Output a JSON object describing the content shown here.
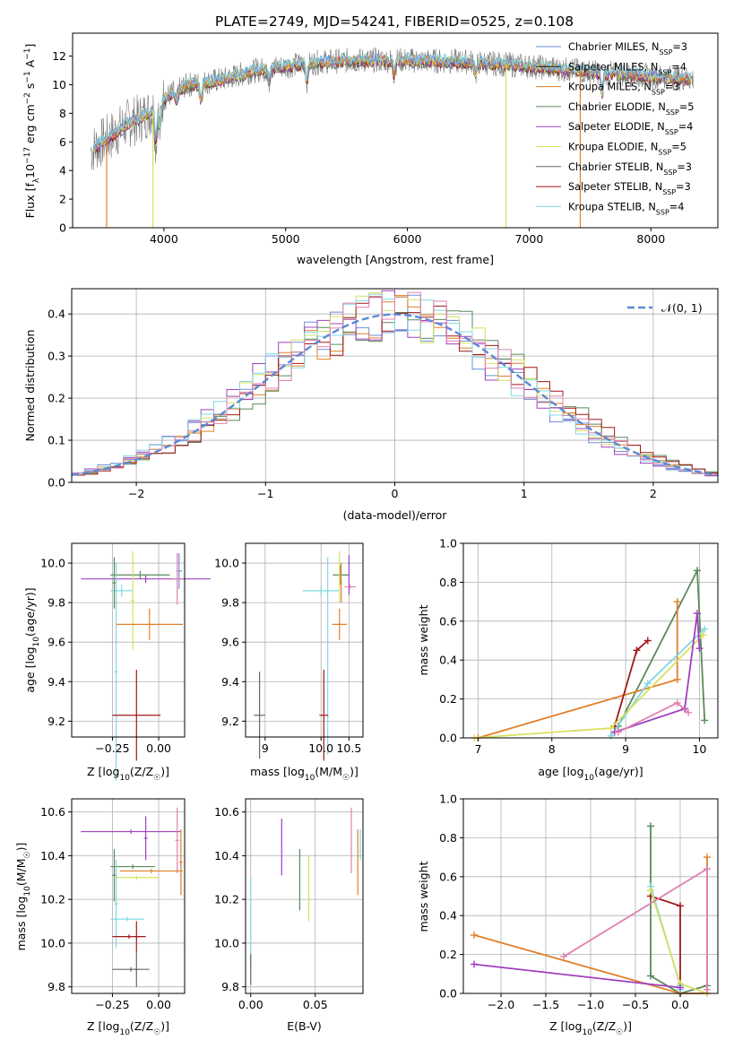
{
  "figure_title": "PLATE=2749, MJD=54241, FIBERID=0525, z=0.108",
  "colors": {
    "Chabrier MILES": "#6f8fd8",
    "Salpeter MILES": "#1f1f1f",
    "Kroupa MILES": "#e0802a",
    "Chabrier ELODIE": "#5a8a5a",
    "Salpeter ELODIE": "#a040c0",
    "Kroupa ELODIE": "#d8e060",
    "Chabrier STELIB": "#666666",
    "Salpeter STELIB": "#a01818",
    "Kroupa STELIB": "#80d8e0",
    "gaussian": "#5b8ad6",
    "extra_pink": "#e080b0"
  },
  "chart_data": [
    {
      "id": "spectrum",
      "type": "line",
      "title": "PLATE=2749, MJD=54241, FIBERID=0525, z=0.108",
      "xlabel": "wavelength [Angstrom, rest frame]",
      "ylabel": "Flux [f_λ 10^-17 erg cm^-2 s^-1 A^-1]",
      "xlim": [
        3250,
        8550
      ],
      "ylim": [
        0,
        13.6
      ],
      "xticks": [
        4000,
        5000,
        6000,
        7000,
        8000
      ],
      "yticks": [
        0,
        2,
        4,
        6,
        8,
        10,
        12
      ],
      "legend": [
        {
          "label": "Chabrier MILES, N_SSP=3",
          "main": "Chabrier MILES, N",
          "sub": "SSP",
          "tail": "=3"
        },
        {
          "label": "Salpeter MILES, N_SSP=4",
          "main": "Salpeter MILES, N",
          "sub": "SSP",
          "tail": "=4"
        },
        {
          "label": "Kroupa MILES, N_SSP=3",
          "main": "Kroupa MILES, N",
          "sub": "SSP",
          "tail": "=3"
        },
        {
          "label": "Chabrier ELODIE, N_SSP=5",
          "main": "Chabrier ELODIE, N",
          "sub": "SSP",
          "tail": "=5"
        },
        {
          "label": "Salpeter ELODIE, N_SSP=4",
          "main": "Salpeter ELODIE, N",
          "sub": "SSP",
          "tail": "=4"
        },
        {
          "label": "Kroupa ELODIE, N_SSP=5",
          "main": "Kroupa ELODIE, N",
          "sub": "SSP",
          "tail": "=5"
        },
        {
          "label": "Chabrier STELIB, N_SSP=3",
          "main": "Chabrier STELIB, N",
          "sub": "SSP",
          "tail": "=3"
        },
        {
          "label": "Salpeter STELIB, N_SSP=3",
          "main": "Salpeter STELIB, N",
          "sub": "SSP",
          "tail": "=3"
        },
        {
          "label": "Kroupa STELIB, N_SSP=4",
          "main": "Kroupa STELIB, N",
          "sub": "SSP",
          "tail": "=4"
        }
      ],
      "legend_placement": "right",
      "grid": false,
      "continuum": {
        "x": [
          3400,
          3500,
          3600,
          3700,
          3800,
          3900,
          4000,
          4100,
          4200,
          4300,
          4500,
          4700,
          4900,
          5100,
          5300,
          5600,
          6000,
          6500,
          7000,
          7500,
          8000,
          8350
        ],
        "y": [
          5.4,
          6.0,
          6.6,
          7.3,
          7.6,
          8.2,
          9.0,
          9.6,
          10.0,
          10.1,
          10.4,
          10.9,
          11.2,
          11.4,
          11.6,
          11.7,
          11.7,
          11.6,
          11.3,
          10.9,
          10.6,
          10.4
        ]
      },
      "absorption_features": [
        {
          "x": 3934,
          "depth": 2.5
        },
        {
          "x": 3968,
          "depth": 2.0
        },
        {
          "x": 4102,
          "depth": 1.0
        },
        {
          "x": 4304,
          "depth": 1.2
        },
        {
          "x": 4861,
          "depth": 1.0
        },
        {
          "x": 5175,
          "depth": 1.2
        },
        {
          "x": 5892,
          "depth": 1.0
        },
        {
          "x": 6563,
          "depth": 0.8
        },
        {
          "x": 7600,
          "depth": 1.5
        }
      ],
      "model_dropouts": [
        {
          "x": 3530,
          "series": "Kroupa MILES"
        },
        {
          "x": 3910,
          "series": "Kroupa ELODIE"
        },
        {
          "x": 6810,
          "series": "Kroupa ELODIE"
        },
        {
          "x": 7420,
          "series": "Kroupa MILES"
        }
      ]
    },
    {
      "id": "residuals",
      "type": "histogram",
      "xlabel": "(data-model)/error",
      "ylabel": "Normed distribution",
      "xlim": [
        -2.5,
        2.5
      ],
      "ylim": [
        0,
        0.46
      ],
      "xticks": [
        -2,
        -1,
        0,
        1,
        2
      ],
      "xtick_labels": [
        "−2",
        "−1",
        "0",
        "1",
        "2"
      ],
      "yticks": [
        0.0,
        0.1,
        0.2,
        0.3,
        0.4
      ],
      "grid": true,
      "bin_width": 0.1,
      "legend": {
        "label": "N(0,1)",
        "main": "𝒩(0, 1)",
        "placement": "upper right"
      },
      "gaussian": {
        "mean": 0,
        "sigma": 1,
        "peak": 0.399
      }
    },
    {
      "id": "age_vs_Z",
      "type": "scatter_errorbar",
      "xlabel": "Z [log10(Z/Z☉)]",
      "xlabel_main": "Z [log",
      "xlabel_sub": "10",
      "xlabel_tail": "(Z/Z",
      "ylabel": "age [log10(age/yr)]",
      "xlim": [
        -0.47,
        0.14
      ],
      "ylim": [
        9.12,
        10.1
      ],
      "xticks": [
        -0.25,
        0.0
      ],
      "xtick_labels": [
        "−0.25",
        "0.00"
      ],
      "yticks": [
        9.2,
        9.4,
        9.6,
        9.8,
        10.0
      ],
      "grid": true,
      "points": [
        {
          "series": "Chabrier MILES",
          "x": 0.11,
          "xerr": 0.015,
          "y": 9.96,
          "yerr": 0.09
        },
        {
          "series": "Salpeter ELODIE",
          "x": -0.07,
          "xerr": 0.35,
          "y": 9.92,
          "yerr": 0.02
        },
        {
          "series": "Chabrier ELODIE",
          "x": -0.1,
          "xerr": 0.16,
          "y": 9.94,
          "yerr": 0.02
        },
        {
          "series": "Kroupa ELODIE",
          "x": -0.14,
          "xerr": 0.01,
          "y": 9.81,
          "yerr": 0.25
        },
        {
          "series": "Kroupa STELIB",
          "x": -0.2,
          "xerr": 0.06,
          "y": 9.86,
          "yerr": 0.03
        },
        {
          "series": "Chabrier ELODIE",
          "x": -0.24,
          "xerr": 0.01,
          "y": 9.9,
          "yerr": 0.13
        },
        {
          "series": "Kroupa MILES",
          "x": -0.05,
          "xerr": 0.18,
          "y": 9.69,
          "yerr": 0.08
        },
        {
          "series": "extra_pink",
          "x": 0.1,
          "xerr": 0.03,
          "y": 9.92,
          "yerr": 0.13
        },
        {
          "series": "Kroupa STELIB",
          "x": -0.23,
          "xerr": 0.01,
          "y": 9.45,
          "yerr": 0.55
        },
        {
          "series": "Salpeter STELIB",
          "x": -0.12,
          "xerr": 0.13,
          "y": 9.23,
          "yerr": 0.23
        }
      ]
    },
    {
      "id": "age_vs_mass",
      "type": "scatter_errorbar",
      "xlabel": "mass [log10(M/M☉)]",
      "xlabel_main": "mass [log",
      "xlabel_sub": "10",
      "xlabel_tail": "(M/M",
      "xlim": [
        8.65,
        10.75
      ],
      "ylim": [
        9.12,
        10.1
      ],
      "xticks": [
        9.0,
        10.0,
        10.5
      ],
      "xtick_labels": [
        "9",
        "10.0",
        "10.5"
      ],
      "yticks": [
        9.2,
        9.4,
        9.6,
        9.8,
        10.0
      ],
      "grid": true,
      "points": [
        {
          "series": "Chabrier ELODIE",
          "x": 10.35,
          "xerr": 0.14,
          "y": 9.94,
          "yerr": 0.05
        },
        {
          "series": "Kroupa ELODIE",
          "x": 10.33,
          "xerr": 0.02,
          "y": 9.93,
          "yerr": 0.13
        },
        {
          "series": "Kroupa MILES",
          "x": 10.36,
          "xerr": 0.02,
          "y": 9.9,
          "yerr": 0.1
        },
        {
          "series": "Salpeter ELODIE",
          "x": 10.5,
          "xerr": 0.01,
          "y": 9.94,
          "yerr": 0.1
        },
        {
          "series": "extra_pink",
          "x": 10.52,
          "xerr": 0.1,
          "y": 9.88,
          "yerr": 0.01
        },
        {
          "series": "Kroupa STELIB",
          "x": 10.0,
          "xerr": 0.33,
          "y": 9.86,
          "yerr": 0.02
        },
        {
          "series": "Kroupa STELIB",
          "x": 10.12,
          "xerr": 0.01,
          "y": 9.53,
          "yerr": 0.5
        },
        {
          "series": "Kroupa MILES",
          "x": 10.33,
          "xerr": 0.13,
          "y": 9.69,
          "yerr": 0.08
        },
        {
          "series": "Chabrier STELIB",
          "x": 8.9,
          "xerr": 0.1,
          "y": 9.23,
          "yerr": 0.22
        },
        {
          "series": "Salpeter STELIB",
          "x": 10.05,
          "xerr": 0.08,
          "y": 9.23,
          "yerr": 0.23
        }
      ]
    },
    {
      "id": "weight_vs_age",
      "type": "line",
      "xlabel": "age [log10(age/yr)]",
      "xlabel_main": "age  [log",
      "xlabel_sub": "10",
      "xlabel_tail": "(age/yr)]",
      "ylabel": "mass weight",
      "xlim": [
        6.8,
        10.25
      ],
      "ylim": [
        0,
        1
      ],
      "xticks": [
        7,
        8,
        9,
        10
      ],
      "yticks": [
        0.0,
        0.2,
        0.4,
        0.6,
        0.8,
        1.0
      ],
      "grid": true,
      "series": [
        {
          "name": "Chabrier ELODIE",
          "x": [
            8.9,
            9.97,
            10.07
          ],
          "y": [
            0.06,
            0.86,
            0.09
          ]
        },
        {
          "name": "Kroupa MILES",
          "x": [
            7.0,
            9.7,
            9.7
          ],
          "y": [
            0.0,
            0.3,
            0.7
          ]
        },
        {
          "name": "Salpeter STELIB",
          "x": [
            8.85,
            9.15,
            9.3
          ],
          "y": [
            0.06,
            0.45,
            0.5
          ]
        },
        {
          "name": "Kroupa STELIB",
          "x": [
            8.8,
            9.3,
            10.07
          ],
          "y": [
            0.01,
            0.28,
            0.56
          ]
        },
        {
          "name": "Kroupa ELODIE",
          "x": [
            6.95,
            8.8,
            10.05
          ],
          "y": [
            0.0,
            0.05,
            0.53
          ]
        },
        {
          "name": "Salpeter ELODIE",
          "x": [
            8.85,
            9.8,
            9.97,
            10.0
          ],
          "y": [
            0.03,
            0.15,
            0.64,
            0.46
          ]
        },
        {
          "name": "extra_pink",
          "x": [
            8.9,
            9.7,
            9.85
          ],
          "y": [
            0.03,
            0.18,
            0.13
          ]
        }
      ]
    },
    {
      "id": "mass_vs_Z",
      "type": "scatter_errorbar",
      "xlabel": "Z [log10(Z/Z☉)]",
      "xlabel_main": "Z [log",
      "xlabel_sub": "10",
      "xlabel_tail": "(Z/Z",
      "ylabel": "mass [log10(M/M☉)]",
      "xlim": [
        -0.47,
        0.14
      ],
      "ylim": [
        9.77,
        10.66
      ],
      "xticks": [
        -0.25,
        0.0
      ],
      "xtick_labels": [
        "−0.25",
        "0.00"
      ],
      "yticks": [
        9.8,
        10.0,
        10.2,
        10.4,
        10.6
      ],
      "grid": true,
      "points": [
        {
          "series": "Salpeter ELODIE",
          "x": -0.15,
          "xerr": 0.27,
          "y": 10.51,
          "yerr": 0.01
        },
        {
          "series": "Salpeter ELODIE",
          "x": -0.07,
          "xerr": 0.01,
          "y": 10.48,
          "yerr": 0.1
        },
        {
          "series": "extra_pink",
          "x": 0.1,
          "xerr": 0.01,
          "y": 10.47,
          "yerr": 0.15
        },
        {
          "series": "Chabrier ELODIE",
          "x": -0.24,
          "xerr": 0.01,
          "y": 10.31,
          "yerr": 0.12
        },
        {
          "series": "Chabrier ELODIE",
          "x": -0.14,
          "xerr": 0.12,
          "y": 10.35,
          "yerr": 0.01
        },
        {
          "series": "Kroupa MILES",
          "x": -0.04,
          "xerr": 0.17,
          "y": 10.33,
          "yerr": 0.01
        },
        {
          "series": "Kroupa MILES",
          "x": 0.12,
          "xerr": 0.01,
          "y": 10.37,
          "yerr": 0.15
        },
        {
          "series": "Kroupa ELODIE",
          "x": -0.12,
          "xerr": 0.12,
          "y": 10.3,
          "yerr": 0.01
        },
        {
          "series": "Kroupa STELIB",
          "x": -0.17,
          "xerr": 0.09,
          "y": 10.11,
          "yerr": 0.01
        },
        {
          "series": "Kroupa STELIB",
          "x": -0.23,
          "xerr": 0.01,
          "y": 10.18,
          "yerr": 0.2
        },
        {
          "series": "Salpeter STELIB",
          "x": -0.16,
          "xerr": 0.09,
          "y": 10.03,
          "yerr": 0.01
        },
        {
          "series": "Salpeter STELIB",
          "x": -0.12,
          "xerr": 0.01,
          "y": 10.03,
          "yerr": 0.07
        },
        {
          "series": "Chabrier STELIB",
          "x": -0.15,
          "xerr": 0.1,
          "y": 9.88,
          "yerr": 0.01
        },
        {
          "series": "Chabrier STELIB",
          "x": -0.12,
          "xerr": 0.01,
          "y": 9.88,
          "yerr": 0.08
        }
      ]
    },
    {
      "id": "mass_vs_ebv",
      "type": "scatter_errorbar",
      "xlabel": "E(B-V)",
      "xlim": [
        -0.004,
        0.087
      ],
      "ylim": [
        9.77,
        10.66
      ],
      "xticks": [
        0.0,
        0.05
      ],
      "xtick_labels": [
        "0.00",
        "0.05"
      ],
      "yticks": [
        9.8,
        10.0,
        10.2,
        10.4,
        10.6
      ],
      "grid": true,
      "points": [
        {
          "series": "Kroupa STELIB",
          "x": 0.0,
          "xerr": 0.0,
          "y": 10.1,
          "yerr": 0.2
        },
        {
          "series": "Chabrier STELIB",
          "x": 0.0,
          "xerr": 0.0,
          "y": 9.88,
          "yerr": 0.07
        },
        {
          "series": "Salpeter ELODIE",
          "x": 0.024,
          "xerr": 0.0,
          "y": 10.44,
          "yerr": 0.13
        },
        {
          "series": "Chabrier ELODIE",
          "x": 0.038,
          "xerr": 0.0,
          "y": 10.29,
          "yerr": 0.14
        },
        {
          "series": "Kroupa ELODIE",
          "x": 0.045,
          "xerr": 0.0,
          "y": 10.25,
          "yerr": 0.15
        },
        {
          "series": "extra_pink",
          "x": 0.078,
          "xerr": 0.0,
          "y": 10.47,
          "yerr": 0.15
        },
        {
          "series": "Kroupa MILES",
          "x": 0.083,
          "xerr": 0.0,
          "y": 10.37,
          "yerr": 0.15
        },
        {
          "series": "Kroupa STELIB",
          "x": 0.085,
          "xerr": 0.0,
          "y": 10.45,
          "yerr": 0.07
        }
      ]
    },
    {
      "id": "weight_vs_Z",
      "type": "line",
      "xlabel": "Z [log10(Z/Z☉)]",
      "xlabel_main": "Z [log",
      "xlabel_sub": "10",
      "xlabel_tail": "(Z/Z",
      "ylabel": "mass weight",
      "xlim": [
        -2.42,
        0.42
      ],
      "ylim": [
        0,
        1
      ],
      "xticks": [
        -2.0,
        -1.5,
        -1.0,
        -0.5,
        0.0
      ],
      "xtick_labels": [
        "−2.0",
        "−1.5",
        "−1.0",
        "−0.5",
        "0.0"
      ],
      "yticks": [
        0.0,
        0.2,
        0.4,
        0.6,
        0.8,
        1.0
      ],
      "grid": true,
      "series": [
        {
          "name": "Chabrier ELODIE",
          "x": [
            -0.33,
            -0.33,
            0.0,
            0.3
          ],
          "y": [
            0.86,
            0.09,
            0.0,
            0.04
          ]
        },
        {
          "name": "Kroupa MILES",
          "x": [
            -2.3,
            0.0,
            0.3,
            0.3
          ],
          "y": [
            0.3,
            0.0,
            0.0,
            0.7
          ]
        },
        {
          "name": "Salpeter STELIB",
          "x": [
            -0.33,
            0.0,
            0.0
          ],
          "y": [
            0.5,
            0.45,
            0.05
          ]
        },
        {
          "name": "Kroupa STELIB",
          "x": [
            -0.33,
            0.0,
            0.0
          ],
          "y": [
            0.55,
            0.04,
            0.02
          ]
        },
        {
          "name": "Kroupa ELODIE",
          "x": [
            -0.33,
            0.0,
            0.3
          ],
          "y": [
            0.53,
            0.05,
            0.0
          ]
        },
        {
          "name": "Salpeter ELODIE",
          "x": [
            -2.3,
            0.0
          ],
          "y": [
            0.15,
            0.03
          ]
        },
        {
          "name": "extra_pink",
          "x": [
            -1.3,
            0.3,
            0.3
          ],
          "y": [
            0.19,
            0.64,
            0.02
          ]
        }
      ]
    }
  ]
}
